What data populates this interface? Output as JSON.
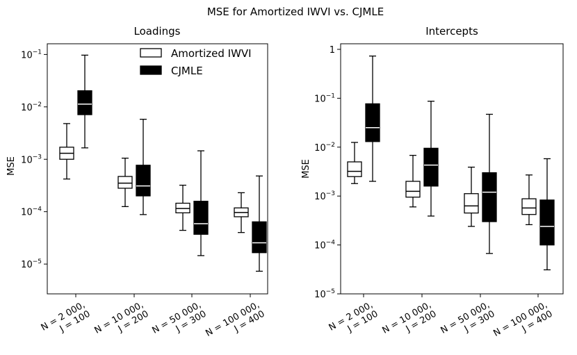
{
  "figure_title": "MSE for Amortized IWVI vs. CJMLE",
  "chart_data": [
    {
      "type": "box",
      "title": "Loadings",
      "ylabel": "MSE",
      "yscale": "log",
      "ylim": [
        2.7e-06,
        0.16
      ],
      "yticks": [
        {
          "value": 1e-05,
          "base": "10",
          "exp": "−5"
        },
        {
          "value": 0.0001,
          "base": "10",
          "exp": "−4"
        },
        {
          "value": 0.001,
          "base": "10",
          "exp": "−3"
        },
        {
          "value": 0.01,
          "base": "10",
          "exp": "−2"
        },
        {
          "value": 0.1,
          "base": "10",
          "exp": "−1"
        }
      ],
      "categories": [
        {
          "line1": "N = 2 000,",
          "line2": "J = 100"
        },
        {
          "line1": "N = 10 000,",
          "line2": "J = 200"
        },
        {
          "line1": "N = 50 000,",
          "line2": "J = 300"
        },
        {
          "line1": "N = 100 000,",
          "line2": "J = 400"
        }
      ],
      "legend": {
        "position": "top-right",
        "items": [
          {
            "label": "Amortized IWVI",
            "fill": "#ffffff"
          },
          {
            "label": "CJMLE",
            "fill": "#000000"
          }
        ]
      },
      "series": [
        {
          "name": "Amortized IWVI",
          "fill": "#ffffff",
          "median_color": "#000000",
          "boxes": [
            {
              "whislo": 0.00042,
              "q1": 0.001,
              "med": 0.0013,
              "q3": 0.0017,
              "whishi": 0.0048
            },
            {
              "whislo": 0.000125,
              "q1": 0.00028,
              "med": 0.00035,
              "q3": 0.00047,
              "whishi": 0.00105
            },
            {
              "whislo": 4.4e-05,
              "q1": 9.5e-05,
              "med": 0.000115,
              "q3": 0.000145,
              "whishi": 0.00032
            },
            {
              "whislo": 4e-05,
              "q1": 8e-05,
              "med": 9.65e-05,
              "q3": 0.000118,
              "whishi": 0.00023
            }
          ]
        },
        {
          "name": "CJMLE",
          "fill": "#000000",
          "median_color": "#ffffff",
          "boxes": [
            {
              "whislo": 0.00165,
              "q1": 0.0071,
              "med": 0.0113,
              "q3": 0.0203,
              "whishi": 0.097
            },
            {
              "whislo": 8.8e-05,
              "q1": 0.0002,
              "med": 0.00031,
              "q3": 0.00077,
              "whishi": 0.0058
            },
            {
              "whislo": 1.45e-05,
              "q1": 3.7e-05,
              "med": 5.9e-05,
              "q3": 0.000158,
              "whishi": 0.00145
            },
            {
              "whislo": 7.3e-06,
              "q1": 1.65e-05,
              "med": 2.55e-05,
              "q3": 6.4e-05,
              "whishi": 0.00048
            }
          ]
        }
      ]
    },
    {
      "type": "box",
      "title": "Intercepts",
      "ylabel": "MSE",
      "yscale": "log",
      "ylim": [
        1e-05,
        1.3
      ],
      "yticks": [
        {
          "value": 1e-05,
          "base": "10",
          "exp": "−5"
        },
        {
          "value": 0.0001,
          "base": "10",
          "exp": "−4"
        },
        {
          "value": 0.001,
          "base": "10",
          "exp": "−3"
        },
        {
          "value": 0.01,
          "base": "10",
          "exp": "−2"
        },
        {
          "value": 0.1,
          "base": "10",
          "exp": "−1"
        },
        {
          "value": 1,
          "base": "1",
          "exp": ""
        }
      ],
      "categories": [
        {
          "line1": "N = 2 000,",
          "line2": "J = 100"
        },
        {
          "line1": "N = 10 000,",
          "line2": "J = 200"
        },
        {
          "line1": "N = 50 000,",
          "line2": "J = 300"
        },
        {
          "line1": "N = 100 000,",
          "line2": "J = 400"
        }
      ],
      "series": [
        {
          "name": "Amortized IWVI",
          "fill": "#ffffff",
          "median_color": "#000000",
          "boxes": [
            {
              "whislo": 0.0018,
              "q1": 0.0025,
              "med": 0.0032,
              "q3": 0.005,
              "whishi": 0.0125
            },
            {
              "whislo": 0.0006,
              "q1": 0.00095,
              "med": 0.00125,
              "q3": 0.002,
              "whishi": 0.0068
            },
            {
              "whislo": 0.00024,
              "q1": 0.00045,
              "med": 0.00063,
              "q3": 0.00112,
              "whishi": 0.0039
            },
            {
              "whislo": 0.00026,
              "q1": 0.00042,
              "med": 0.00057,
              "q3": 0.00088,
              "whishi": 0.0027
            }
          ]
        },
        {
          "name": "CJMLE",
          "fill": "#000000",
          "median_color": "#ffffff",
          "boxes": [
            {
              "whislo": 0.002,
              "q1": 0.013,
              "med": 0.025,
              "q3": 0.077,
              "whishi": 0.73
            },
            {
              "whislo": 0.00039,
              "q1": 0.0016,
              "med": 0.0043,
              "q3": 0.0095,
              "whishi": 0.087
            },
            {
              "whislo": 6.7e-05,
              "q1": 0.0003,
              "med": 0.0012,
              "q3": 0.003,
              "whishi": 0.047
            },
            {
              "whislo": 3.1e-05,
              "q1": 0.0001,
              "med": 0.00024,
              "q3": 0.00083,
              "whishi": 0.0058
            }
          ]
        }
      ]
    }
  ]
}
